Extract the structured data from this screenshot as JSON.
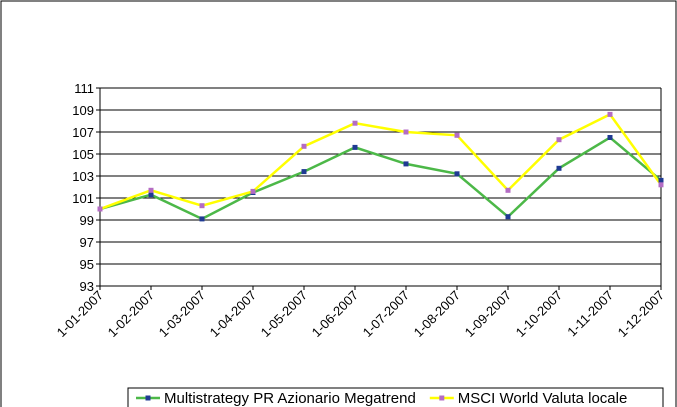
{
  "chart_data": {
    "type": "line",
    "categories": [
      "1-01-2007",
      "1-02-2007",
      "1-03-2007",
      "1-04-2007",
      "1-05-2007",
      "1-06-2007",
      "1-07-2007",
      "1-08-2007",
      "1-09-2007",
      "1-10-2007",
      "1-11-2007",
      "1-12-2007"
    ],
    "series": [
      {
        "name": "Multistrategy PR Azionario Megatrend",
        "color": "#4cb848",
        "marker_color": "#1f3a93",
        "values": [
          100,
          101.3,
          99.1,
          101.5,
          103.4,
          105.6,
          104.1,
          103.2,
          99.3,
          103.7,
          106.5,
          102.6
        ]
      },
      {
        "name": "MSCI World Valuta locale",
        "color": "#ffff00",
        "marker_color": "#b46cc4",
        "values": [
          100,
          101.7,
          100.3,
          101.6,
          105.7,
          107.8,
          107.0,
          106.7,
          101.7,
          106.3,
          108.6,
          102.2
        ]
      }
    ],
    "ylim": [
      93,
      111
    ],
    "yticks": [
      93,
      95,
      97,
      99,
      101,
      103,
      105,
      107,
      109,
      111
    ],
    "grid": true
  }
}
